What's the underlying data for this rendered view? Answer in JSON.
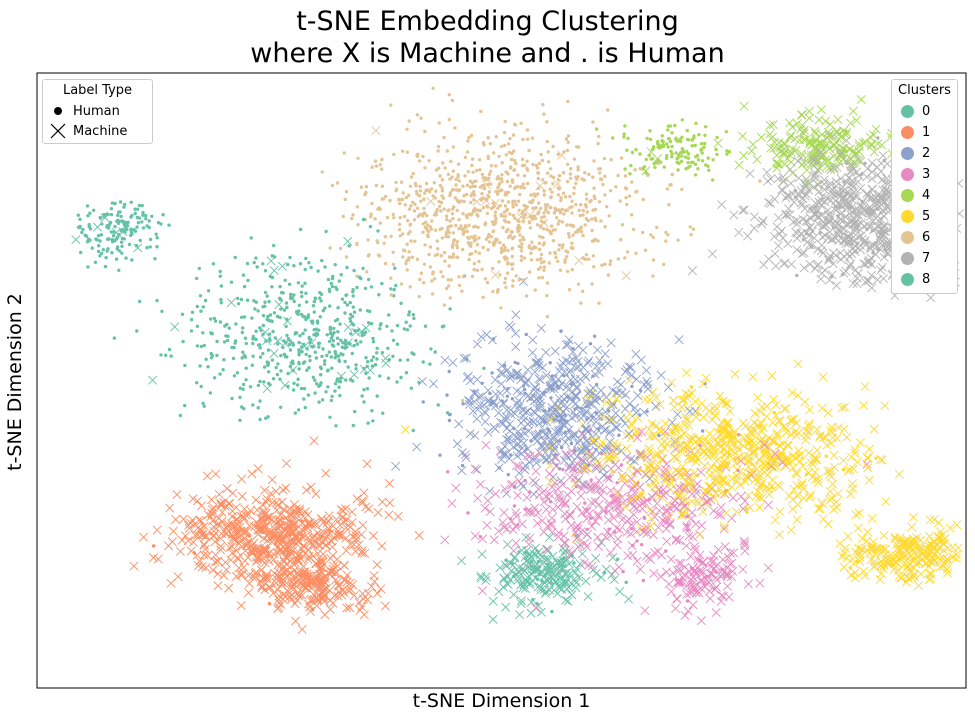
{
  "chart_data": {
    "type": "scatter",
    "title_lines": [
      "t-SNE Embedding Clustering",
      "where X is Machine and . is Human"
    ],
    "xlabel": "t-SNE Dimension 1",
    "ylabel": "t-SNE Dimension 2",
    "xticks": "none",
    "yticks": "none",
    "xlim": [
      -10,
      100
    ],
    "ylim": [
      -10,
      100
    ],
    "grid": false,
    "marker_legend": {
      "title": "Label Type",
      "placement": "top-left",
      "entries": [
        {
          "label": "Human",
          "marker": "dot"
        },
        {
          "label": "Machine",
          "marker": "x"
        }
      ]
    },
    "cluster_legend": {
      "title": "Clusters",
      "placement": "top-right",
      "entries": [
        {
          "label": "0",
          "color": "#66c2a5"
        },
        {
          "label": "1",
          "color": "#fc8d62"
        },
        {
          "label": "2",
          "color": "#8da0cb"
        },
        {
          "label": "3",
          "color": "#e78ac3"
        },
        {
          "label": "4",
          "color": "#a6d854"
        },
        {
          "label": "5",
          "color": "#ffd92f"
        },
        {
          "label": "6",
          "color": "#e5c494"
        },
        {
          "label": "7",
          "color": "#b3b3b3"
        },
        {
          "label": "8",
          "color": "#66c2a5"
        }
      ]
    },
    "clusters": [
      {
        "id": "8",
        "color": "#66c2a5",
        "centers": [
          {
            "x": 0,
            "y": 72,
            "sx": 2.5,
            "sy": 2.5,
            "n_human": 150,
            "n_machine": 6
          }
        ]
      },
      {
        "id": "0",
        "color": "#66c2a5",
        "centers": [
          {
            "x": 21,
            "y": 53,
            "sx": 7.5,
            "sy": 7,
            "n_human": 560,
            "n_machine": 30
          },
          {
            "x": 50,
            "y": 10,
            "sx": 3.5,
            "sy": 3,
            "n_human": 25,
            "n_machine": 180
          }
        ]
      },
      {
        "id": "1",
        "color": "#fc8d62",
        "centers": [
          {
            "x": 18,
            "y": 17,
            "sx": 5.5,
            "sy": 4.5,
            "n_human": 10,
            "n_machine": 520
          },
          {
            "x": 23,
            "y": 8,
            "sx": 3,
            "sy": 2.5,
            "n_human": 3,
            "n_machine": 160
          }
        ]
      },
      {
        "id": "2",
        "color": "#8da0cb",
        "centers": [
          {
            "x": 51,
            "y": 40,
            "sx": 6,
            "sy": 6,
            "n_human": 100,
            "n_machine": 440
          }
        ]
      },
      {
        "id": "3",
        "color": "#e78ac3",
        "centers": [
          {
            "x": 58,
            "y": 23,
            "sx": 8,
            "sy": 5.5,
            "n_human": 50,
            "n_machine": 340
          },
          {
            "x": 69,
            "y": 10,
            "sx": 3,
            "sy": 3,
            "n_human": 5,
            "n_machine": 120
          }
        ]
      },
      {
        "id": "4",
        "color": "#a6d854",
        "centers": [
          {
            "x": 65,
            "y": 86,
            "sx": 3,
            "sy": 2,
            "n_human": 130,
            "n_machine": 3
          },
          {
            "x": 82,
            "y": 87,
            "sx": 4,
            "sy": 2.5,
            "n_human": 5,
            "n_machine": 180
          }
        ]
      },
      {
        "id": "5",
        "color": "#ffd92f",
        "centers": [
          {
            "x": 72,
            "y": 32,
            "sx": 8,
            "sy": 5.5,
            "n_human": 30,
            "n_machine": 580
          },
          {
            "x": 94,
            "y": 14,
            "sx": 4,
            "sy": 2.5,
            "n_human": 10,
            "n_machine": 230
          }
        ]
      },
      {
        "id": "6",
        "color": "#e5c494",
        "centers": [
          {
            "x": 45,
            "y": 75,
            "sx": 8,
            "sy": 7,
            "n_human": 950,
            "n_machine": 15
          }
        ]
      },
      {
        "id": "7",
        "color": "#b3b3b3",
        "centers": [
          {
            "x": 88,
            "y": 74,
            "sx": 6,
            "sy": 5.5,
            "n_human": 60,
            "n_machine": 620
          }
        ]
      }
    ]
  }
}
